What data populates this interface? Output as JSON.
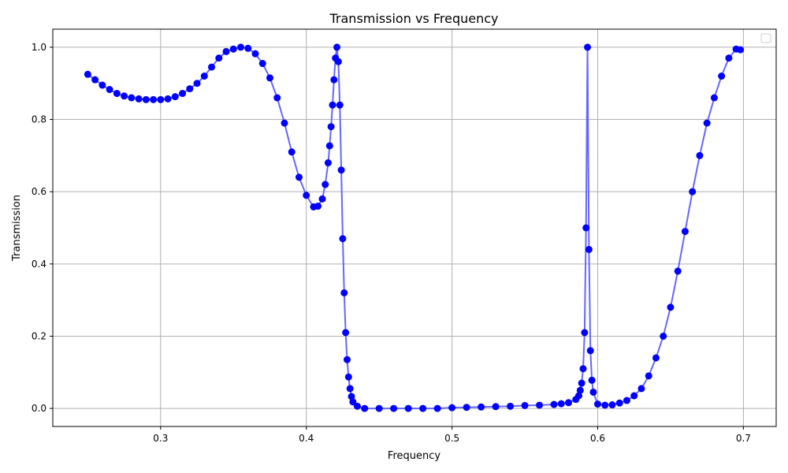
{
  "chart_data": {
    "type": "line",
    "title": "Transmission vs Frequency",
    "xlabel": "Frequency",
    "ylabel": "Transmission",
    "xlim": [
      0.226,
      0.7225
    ],
    "ylim": [
      -0.05,
      1.05
    ],
    "xticks": [
      0.3,
      0.4,
      0.5,
      0.6,
      0.7
    ],
    "xtick_labels": [
      "0.3",
      "0.4",
      "0.5",
      "0.6",
      "0.7"
    ],
    "yticks": [
      0.0,
      0.2,
      0.4,
      0.6,
      0.8,
      1.0
    ],
    "ytick_labels": [
      "0.0",
      "0.2",
      "0.4",
      "0.6",
      "0.8",
      "1.0"
    ],
    "grid": true,
    "legend": {
      "placement": "top-right",
      "entries": []
    },
    "colors": {
      "marker": "#0000ff",
      "line": "#6666ff",
      "grid": "#b0b0b0"
    },
    "series": [
      {
        "x": [
          0.25,
          0.255,
          0.26,
          0.265,
          0.27,
          0.275,
          0.28,
          0.285,
          0.29,
          0.295,
          0.3,
          0.305,
          0.31,
          0.315,
          0.32,
          0.325,
          0.33,
          0.335,
          0.34,
          0.345,
          0.35,
          0.355,
          0.36,
          0.365,
          0.37,
          0.375,
          0.38,
          0.385,
          0.39,
          0.395,
          0.4,
          0.405,
          0.408,
          0.411,
          0.413,
          0.415,
          0.416,
          0.417,
          0.418,
          0.419,
          0.42,
          0.421,
          0.422,
          0.423,
          0.424,
          0.425,
          0.426,
          0.427,
          0.428,
          0.429,
          0.43,
          0.431,
          0.432,
          0.435,
          0.44,
          0.45,
          0.46,
          0.47,
          0.48,
          0.49,
          0.5,
          0.51,
          0.52,
          0.53,
          0.54,
          0.55,
          0.56,
          0.57,
          0.575,
          0.58,
          0.585,
          0.587,
          0.588,
          0.589,
          0.59,
          0.591,
          0.592,
          0.593,
          0.594,
          0.595,
          0.596,
          0.597,
          0.6,
          0.605,
          0.61,
          0.615,
          0.62,
          0.625,
          0.63,
          0.635,
          0.64,
          0.645,
          0.65,
          0.655,
          0.66,
          0.665,
          0.67,
          0.675,
          0.68,
          0.685,
          0.69,
          0.695,
          0.698
        ],
        "y": [
          0.925,
          0.91,
          0.895,
          0.883,
          0.872,
          0.865,
          0.86,
          0.857,
          0.855,
          0.855,
          0.855,
          0.857,
          0.863,
          0.872,
          0.885,
          0.9,
          0.92,
          0.945,
          0.97,
          0.988,
          0.995,
          1.0,
          0.997,
          0.982,
          0.955,
          0.915,
          0.86,
          0.79,
          0.71,
          0.64,
          0.59,
          0.558,
          0.56,
          0.58,
          0.62,
          0.68,
          0.727,
          0.78,
          0.84,
          0.91,
          0.97,
          1.0,
          0.96,
          0.84,
          0.66,
          0.47,
          0.32,
          0.21,
          0.135,
          0.087,
          0.055,
          0.033,
          0.018,
          0.006,
          0.0,
          0.0,
          0.0,
          0.0,
          0.0,
          0.0,
          0.002,
          0.003,
          0.004,
          0.005,
          0.006,
          0.008,
          0.009,
          0.011,
          0.013,
          0.016,
          0.025,
          0.035,
          0.05,
          0.07,
          0.11,
          0.21,
          0.5,
          1.0,
          0.44,
          0.16,
          0.078,
          0.045,
          0.012,
          0.009,
          0.01,
          0.015,
          0.022,
          0.035,
          0.055,
          0.09,
          0.14,
          0.2,
          0.28,
          0.38,
          0.49,
          0.6,
          0.7,
          0.79,
          0.86,
          0.92,
          0.97,
          0.995,
          0.993
        ]
      }
    ]
  }
}
